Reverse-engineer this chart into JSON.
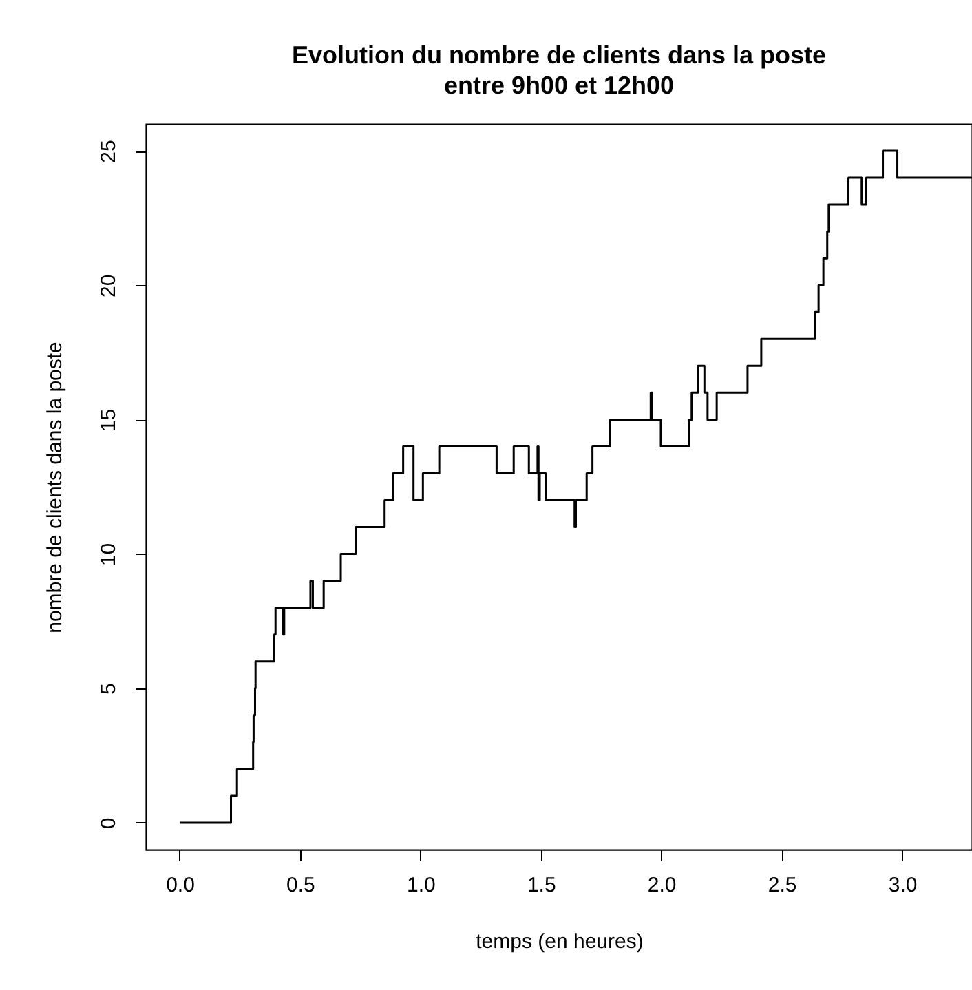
{
  "chart_data": {
    "type": "step",
    "title": "Evolution du nombre de clients dans la poste\nentre 9h00 et 12h00",
    "xlabel": "temps (en heures)",
    "ylabel": "nombre de clients dans la poste",
    "x": [
      0,
      0.213,
      0.238,
      0.305,
      0.307,
      0.313,
      0.315,
      0.393,
      0.398,
      0.43,
      0.434,
      0.543,
      0.553,
      0.598,
      0.669,
      0.731,
      0.851,
      0.886,
      0.928,
      0.971,
      1.01,
      1.078,
      1.316,
      1.387,
      1.45,
      1.486,
      1.49,
      1.495,
      1.52,
      1.64,
      1.645,
      1.69,
      1.714,
      1.787,
      1.956,
      1.962,
      1.998,
      2.114,
      2.126,
      2.152,
      2.179,
      2.192,
      2.23,
      2.358,
      2.415,
      2.638,
      2.653,
      2.673,
      2.689,
      2.695,
      2.777,
      2.832,
      2.851,
      2.92,
      2.98,
      3.29
    ],
    "series": [
      {
        "color": "#000000",
        "values": [
          0,
          1,
          2,
          3,
          4,
          5,
          6,
          7,
          8,
          7,
          8,
          9,
          8,
          9,
          10,
          11,
          12,
          13,
          14,
          12,
          13,
          14,
          13,
          14,
          13,
          14,
          12,
          13,
          12,
          11,
          12,
          13,
          14,
          15,
          16,
          15,
          14,
          15,
          16,
          17,
          16,
          15,
          16,
          17,
          18,
          19,
          20,
          21,
          22,
          23,
          24,
          23,
          24,
          25,
          24,
          24
        ]
      }
    ],
    "xlim": [
      -0.14,
      3.29
    ],
    "ylim": [
      -1,
      26
    ],
    "xticks": [
      {
        "value": 0,
        "label": "0.0"
      },
      0.5,
      {
        "value": 1,
        "label": "1.0"
      },
      1.5,
      {
        "value": 2,
        "label": "2.0"
      },
      2.5,
      {
        "value": 3,
        "label": "3.0"
      }
    ],
    "yticks": [
      0,
      5,
      10,
      15,
      20,
      25
    ],
    "grid": false,
    "line_style": "solid",
    "marker": "none"
  }
}
